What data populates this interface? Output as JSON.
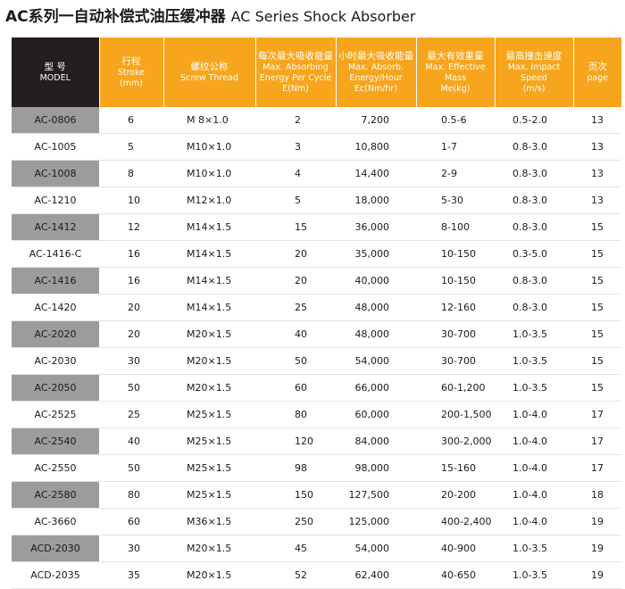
{
  "title": {
    "zh": "AC系列一自动补偿式油压缓冲器",
    "en": "AC Series Shock Absorber"
  },
  "headers": [
    {
      "zh": "型 号",
      "en": "MODEL"
    },
    {
      "zh": "行程",
      "en": "Stroke\n(mm)"
    },
    {
      "zh": "螺纹公称",
      "en": "Screw Thread"
    },
    {
      "zh": "每次最大吸收能量",
      "en": "Max. Absorbing\nEnergy Per Cycle\nE(Nm)"
    },
    {
      "zh": "小时最大吸收能量",
      "en": "Max. Absorb.\nEnergy/Hour\nEc(Nm/hr)"
    },
    {
      "zh": "最大有效重量",
      "en": "Max. Effective Mass\nMe(kg)"
    },
    {
      "zh": "最高撞击速度",
      "en": "Max. Impact Speed\n(m/s)"
    },
    {
      "zh": "页次",
      "en": "page"
    }
  ],
  "rows": [
    {
      "model": "AC-0806",
      "stroke": "6",
      "thread": "M 8×1.0",
      "energy": "2",
      "energy_hour": "7,200",
      "mass": "0.5-6",
      "speed": "0.5-2.0",
      "page": "13"
    },
    {
      "model": "AC-1005",
      "stroke": "5",
      "thread": "M10×1.0",
      "energy": "3",
      "energy_hour": "10,800",
      "mass": "1-7",
      "speed": "0.8-3.0",
      "page": "13"
    },
    {
      "model": "AC-1008",
      "stroke": "8",
      "thread": "M10×1.0",
      "energy": "4",
      "energy_hour": "14,400",
      "mass": "2-9",
      "speed": "0.8-3.0",
      "page": "13"
    },
    {
      "model": "AC-1210",
      "stroke": "10",
      "thread": "M12×1.0",
      "energy": "5",
      "energy_hour": "18,000",
      "mass": "5-30",
      "speed": "0.8-3.0",
      "page": "13"
    },
    {
      "model": "AC-1412",
      "stroke": "12",
      "thread": "M14×1.5",
      "energy": "15",
      "energy_hour": "36,000",
      "mass": "8-100",
      "speed": "0.8-3.0",
      "page": "15"
    },
    {
      "model": "AC-1416-C",
      "stroke": "16",
      "thread": "M14×1.5",
      "energy": "20",
      "energy_hour": "35,000",
      "mass": "10-150",
      "speed": "0.3-5.0",
      "page": "15"
    },
    {
      "model": "AC-1416",
      "stroke": "16",
      "thread": "M14×1.5",
      "energy": "20",
      "energy_hour": "40,000",
      "mass": "10-150",
      "speed": "0.8-3.0",
      "page": "15"
    },
    {
      "model": "AC-1420",
      "stroke": "20",
      "thread": "M14×1.5",
      "energy": "25",
      "energy_hour": "48,000",
      "mass": "12-160",
      "speed": "0.8-3.0",
      "page": "15"
    },
    {
      "model": "AC-2020",
      "stroke": "20",
      "thread": "M20×1.5",
      "energy": "40",
      "energy_hour": "48,000",
      "mass": "30-700",
      "speed": "1.0-3.5",
      "page": "15"
    },
    {
      "model": "AC-2030",
      "stroke": "30",
      "thread": "M20×1.5",
      "energy": "50",
      "energy_hour": "54,000",
      "mass": "30-700",
      "speed": "1.0-3.5",
      "page": "15"
    },
    {
      "model": "AC-2050",
      "stroke": "50",
      "thread": "M20×1.5",
      "energy": "60",
      "energy_hour": "66,000",
      "mass": "60-1,200",
      "speed": "1.0-3.5",
      "page": "15"
    },
    {
      "model": "AC-2525",
      "stroke": "25",
      "thread": "M25×1.5",
      "energy": "80",
      "energy_hour": "60,000",
      "mass": "200-1,500",
      "speed": "1.0-4.0",
      "page": "17"
    },
    {
      "model": "AC-2540",
      "stroke": "40",
      "thread": "M25×1.5",
      "energy": "120",
      "energy_hour": "84,000",
      "mass": "300-2,000",
      "speed": "1.0-4.0",
      "page": "17"
    },
    {
      "model": "AC-2550",
      "stroke": "50",
      "thread": "M25×1.5",
      "energy": "98",
      "energy_hour": "98,000",
      "mass": "15-160",
      "speed": "1.0-4.0",
      "page": "17"
    },
    {
      "model": "AC-2580",
      "stroke": "80",
      "thread": "M25×1.5",
      "energy": "150",
      "energy_hour": "127,500",
      "mass": "20-200",
      "speed": "1.0-4.0",
      "page": "18"
    },
    {
      "model": "AC-3660",
      "stroke": "60",
      "thread": "M36×1.5",
      "energy": "250",
      "energy_hour": "125,000",
      "mass": "400-2,400",
      "speed": "1.0-4.0",
      "page": "19"
    },
    {
      "model": "ACD-2030",
      "stroke": "30",
      "thread": "M20×1.5",
      "energy": "45",
      "energy_hour": "54,000",
      "mass": "40-900",
      "speed": "1.0-3.5",
      "page": "19"
    },
    {
      "model": "ACD-2035",
      "stroke": "35",
      "thread": "M20×1.5",
      "energy": "52",
      "energy_hour": "62,400",
      "mass": "40-650",
      "speed": "1.0-3.5",
      "page": "19"
    }
  ]
}
